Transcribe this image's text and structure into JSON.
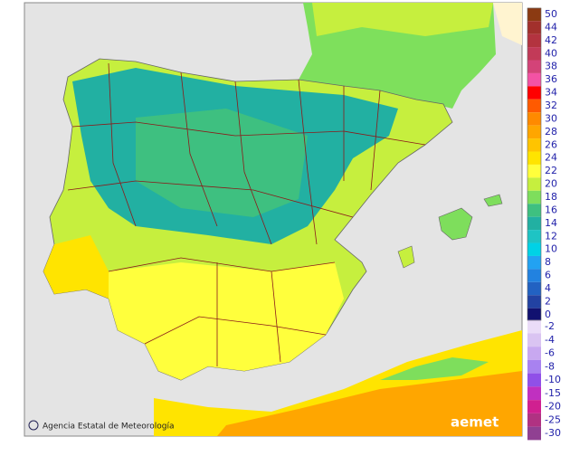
{
  "credit": "Agencia Estatal de Meteorología",
  "logo": "aemet",
  "legend": {
    "upper": [
      {
        "value": 50,
        "color": "#8b3a12"
      },
      {
        "value": 44,
        "color": "#a2302c"
      },
      {
        "value": 42,
        "color": "#b3333f"
      },
      {
        "value": 40,
        "color": "#c23a58"
      },
      {
        "value": 38,
        "color": "#d34378"
      },
      {
        "value": 36,
        "color": "#f352a4"
      },
      {
        "value": 34,
        "color": "#ff0000"
      },
      {
        "value": 32,
        "color": "#ff5a00"
      },
      {
        "value": 30,
        "color": "#ff8a00"
      },
      {
        "value": 28,
        "color": "#ffa600"
      },
      {
        "value": 26,
        "color": "#ffc400"
      },
      {
        "value": 24,
        "color": "#ffe400"
      },
      {
        "value": 22,
        "color": "#ffff3c"
      },
      {
        "value": 20,
        "color": "#c6ef3e"
      },
      {
        "value": 18,
        "color": "#7ede5c"
      },
      {
        "value": 16,
        "color": "#3ec080"
      },
      {
        "value": 14,
        "color": "#22b0a2"
      },
      {
        "value": 12,
        "color": "#1ec4c4"
      },
      {
        "value": 10,
        "color": "#00d2e6"
      },
      {
        "value": 8,
        "color": "#22a2f2"
      },
      {
        "value": 6,
        "color": "#2282e0"
      },
      {
        "value": 4,
        "color": "#2262c2"
      },
      {
        "value": 2,
        "color": "#2242a2"
      },
      {
        "value": 0,
        "color": "#111170"
      }
    ],
    "lower": [
      {
        "value": -2,
        "color": "#eadcf8"
      },
      {
        "value": -4,
        "color": "#dac4f2"
      },
      {
        "value": -6,
        "color": "#c8a8f0"
      },
      {
        "value": -8,
        "color": "#a882f0"
      },
      {
        "value": -10,
        "color": "#9050e8"
      },
      {
        "value": -15,
        "color": "#c030c0"
      },
      {
        "value": -20,
        "color": "#d02090"
      },
      {
        "value": -25,
        "color": "#b03282"
      },
      {
        "value": -30,
        "color": "#904092"
      }
    ]
  }
}
